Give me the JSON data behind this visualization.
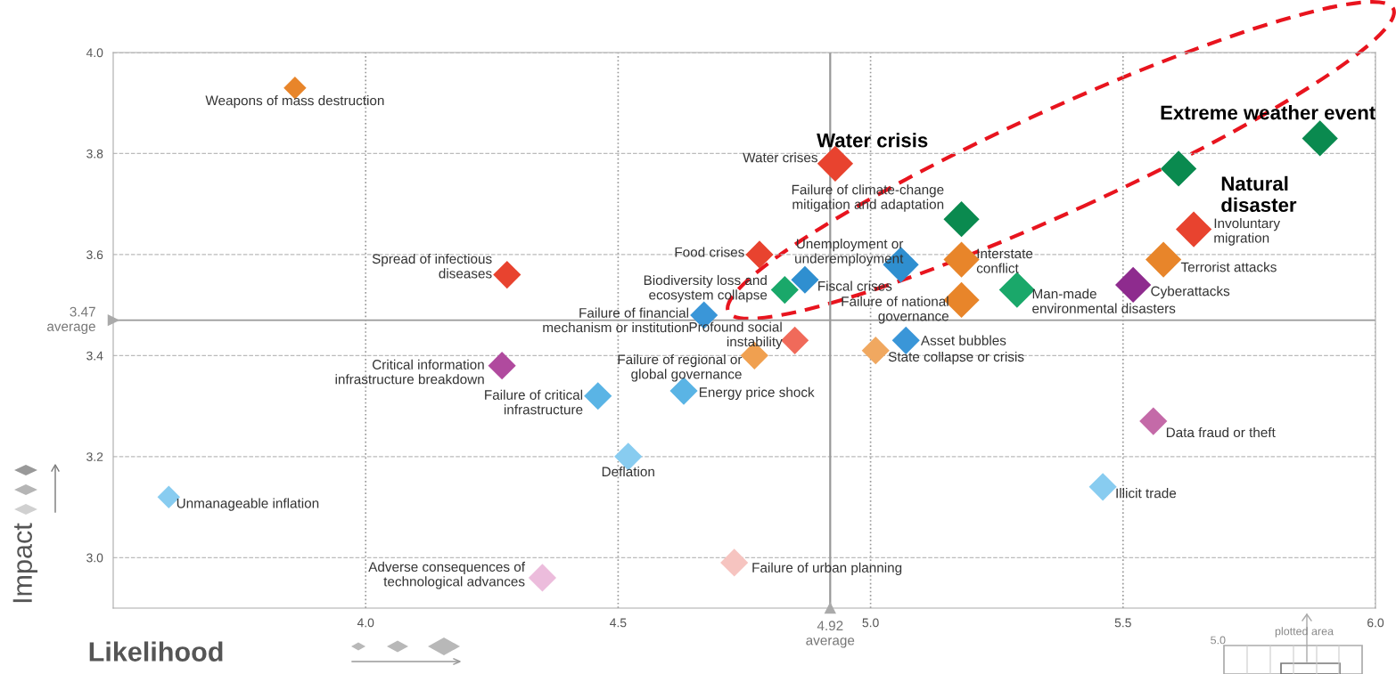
{
  "chart_data": {
    "type": "bubble",
    "xlabel": "Likelihood",
    "ylabel": "Impact",
    "xlim": [
      3.5,
      6.0
    ],
    "ylim": [
      2.9,
      4.0
    ],
    "xticks": [
      {
        "value": 4,
        "label": "4.0"
      },
      4.5,
      {
        "value": 5,
        "label": "5.0"
      },
      5.5,
      {
        "value": 6,
        "label": "6.0"
      }
    ],
    "yticks": [
      {
        "value": 3,
        "label": "3.0"
      },
      3.2,
      3.4,
      3.6,
      3.8,
      {
        "value": 4,
        "label": "4.0"
      }
    ],
    "grid": true,
    "marker": "diamond",
    "legend": false,
    "ref_lines": [
      {
        "axis": "x",
        "value": 4.92,
        "label": "4.92\naverage",
        "color": "#999999"
      },
      {
        "axis": "y",
        "value": 3.47,
        "label": "3.47\naverage",
        "color": "#999999"
      }
    ],
    "series": [
      {
        "x": [
          3.86,
          4.93,
          5.18,
          5.64,
          5.58,
          5.52,
          5.29,
          4.28,
          4.78,
          5.06,
          5.18,
          4.83,
          4.87,
          5.18,
          4.67,
          4.85,
          5.07,
          4.77,
          5.01,
          4.27,
          4.46,
          4.63,
          5.56,
          4.52,
          5.46,
          3.61,
          4.73,
          4.35,
          5.89,
          5.61
        ],
        "values": [
          3.93,
          3.78,
          3.67,
          3.65,
          3.59,
          3.54,
          3.53,
          3.56,
          3.6,
          3.58,
          3.59,
          3.53,
          3.55,
          3.51,
          3.48,
          3.43,
          3.43,
          3.4,
          3.41,
          3.38,
          3.32,
          3.33,
          3.27,
          3.2,
          3.14,
          3.12,
          2.99,
          2.96,
          3.83,
          3.77
        ],
        "sizes": [
          0.4,
          1,
          1,
          1,
          1,
          1,
          1,
          0.6,
          0.6,
          1,
          1,
          0.6,
          0.6,
          1,
          0.6,
          0.6,
          0.6,
          0.6,
          0.6,
          0.6,
          0.6,
          0.6,
          0.6,
          0.6,
          0.6,
          0.4,
          0.6,
          0.6,
          1,
          1
        ],
        "colors": [
          "#e8852a",
          "#e8432f",
          "#0a8a4f",
          "#e8432f",
          "#e8852a",
          "#8e2b8e",
          "#1aa86a",
          "#e8432f",
          "#e8432f",
          "#2f8fd0",
          "#e8852a",
          "#1aa86a",
          "#2f8fd0",
          "#e8852a",
          "#3a96d8",
          "#f06a5a",
          "#3a96d8",
          "#f0a050",
          "#f0a860",
          "#b04a9e",
          "#5ab4e5",
          "#5ab4e5",
          "#c46aa8",
          "#88ccf0",
          "#88ccf0",
          "#88ccf0",
          "#f6c4c0",
          "#ecbcdc",
          "#0a8a4f",
          "#0a8a4f"
        ]
      }
    ],
    "annotations": [
      {
        "text": "Weapons of mass destruction",
        "x": 3.86,
        "y": 3.93
      },
      {
        "text": "Water crises",
        "x": 4.93,
        "y": 3.78
      },
      {
        "text": "Failure of climate-change\nmitigation and adaptation",
        "x": 5.18,
        "y": 3.67
      },
      {
        "text": "Involuntary\nmigration",
        "x": 5.64,
        "y": 3.65
      },
      {
        "text": "Terrorist attacks",
        "x": 5.58,
        "y": 3.59
      },
      {
        "text": "Cyberattacks",
        "x": 5.52,
        "y": 3.54
      },
      {
        "text": "Man-made\nenvironmental disasters",
        "x": 5.29,
        "y": 3.53
      },
      {
        "text": "Spread of infectious\ndiseases",
        "x": 4.28,
        "y": 3.56
      },
      {
        "text": "Food crises",
        "x": 4.78,
        "y": 3.6
      },
      {
        "text": "Unemployment or\nunderemployment",
        "x": 5.06,
        "y": 3.58
      },
      {
        "text": "Interstate\nconflict",
        "x": 5.18,
        "y": 3.59
      },
      {
        "text": "Biodiversity loss and\necosystem collapse",
        "x": 4.83,
        "y": 3.53
      },
      {
        "text": "Fiscal crises",
        "x": 4.87,
        "y": 3.55
      },
      {
        "text": "Failure of national\ngovernance",
        "x": 5.18,
        "y": 3.51
      },
      {
        "text": "Failure of financial\nmechanism or institution",
        "x": 4.67,
        "y": 3.48
      },
      {
        "text": "Profound social\ninstability",
        "x": 4.85,
        "y": 3.43
      },
      {
        "text": "Asset bubbles",
        "x": 5.07,
        "y": 3.43
      },
      {
        "text": "Failure of regional or\nglobal governance",
        "x": 4.77,
        "y": 3.4
      },
      {
        "text": "State collapse or crisis",
        "x": 5.01,
        "y": 3.41
      },
      {
        "text": "Critical information\ninfrastructure breakdown",
        "x": 4.27,
        "y": 3.38
      },
      {
        "text": "Failure of critical\ninfrastructure",
        "x": 4.46,
        "y": 3.32
      },
      {
        "text": "Energy price shock",
        "x": 4.63,
        "y": 3.33
      },
      {
        "text": "Data fraud or theft",
        "x": 5.56,
        "y": 3.27
      },
      {
        "text": "Deflation",
        "x": 4.52,
        "y": 3.2
      },
      {
        "text": "Illicit trade",
        "x": 5.46,
        "y": 3.14
      },
      {
        "text": "Unmanageable inflation",
        "x": 3.61,
        "y": 3.12
      },
      {
        "text": "Failure of urban planning",
        "x": 4.73,
        "y": 2.99
      },
      {
        "text": "Adverse consequences of\ntechnological advances",
        "x": 4.35,
        "y": 2.96
      },
      {
        "text": "Water crisis",
        "x": 4.93,
        "y": 3.78
      },
      {
        "text": "Extreme weather event",
        "x": 5.89,
        "y": 3.83
      },
      {
        "text": "Natural\ndisaster",
        "x": 5.61,
        "y": 3.77
      },
      "plotted area",
      "5.0"
    ]
  }
}
